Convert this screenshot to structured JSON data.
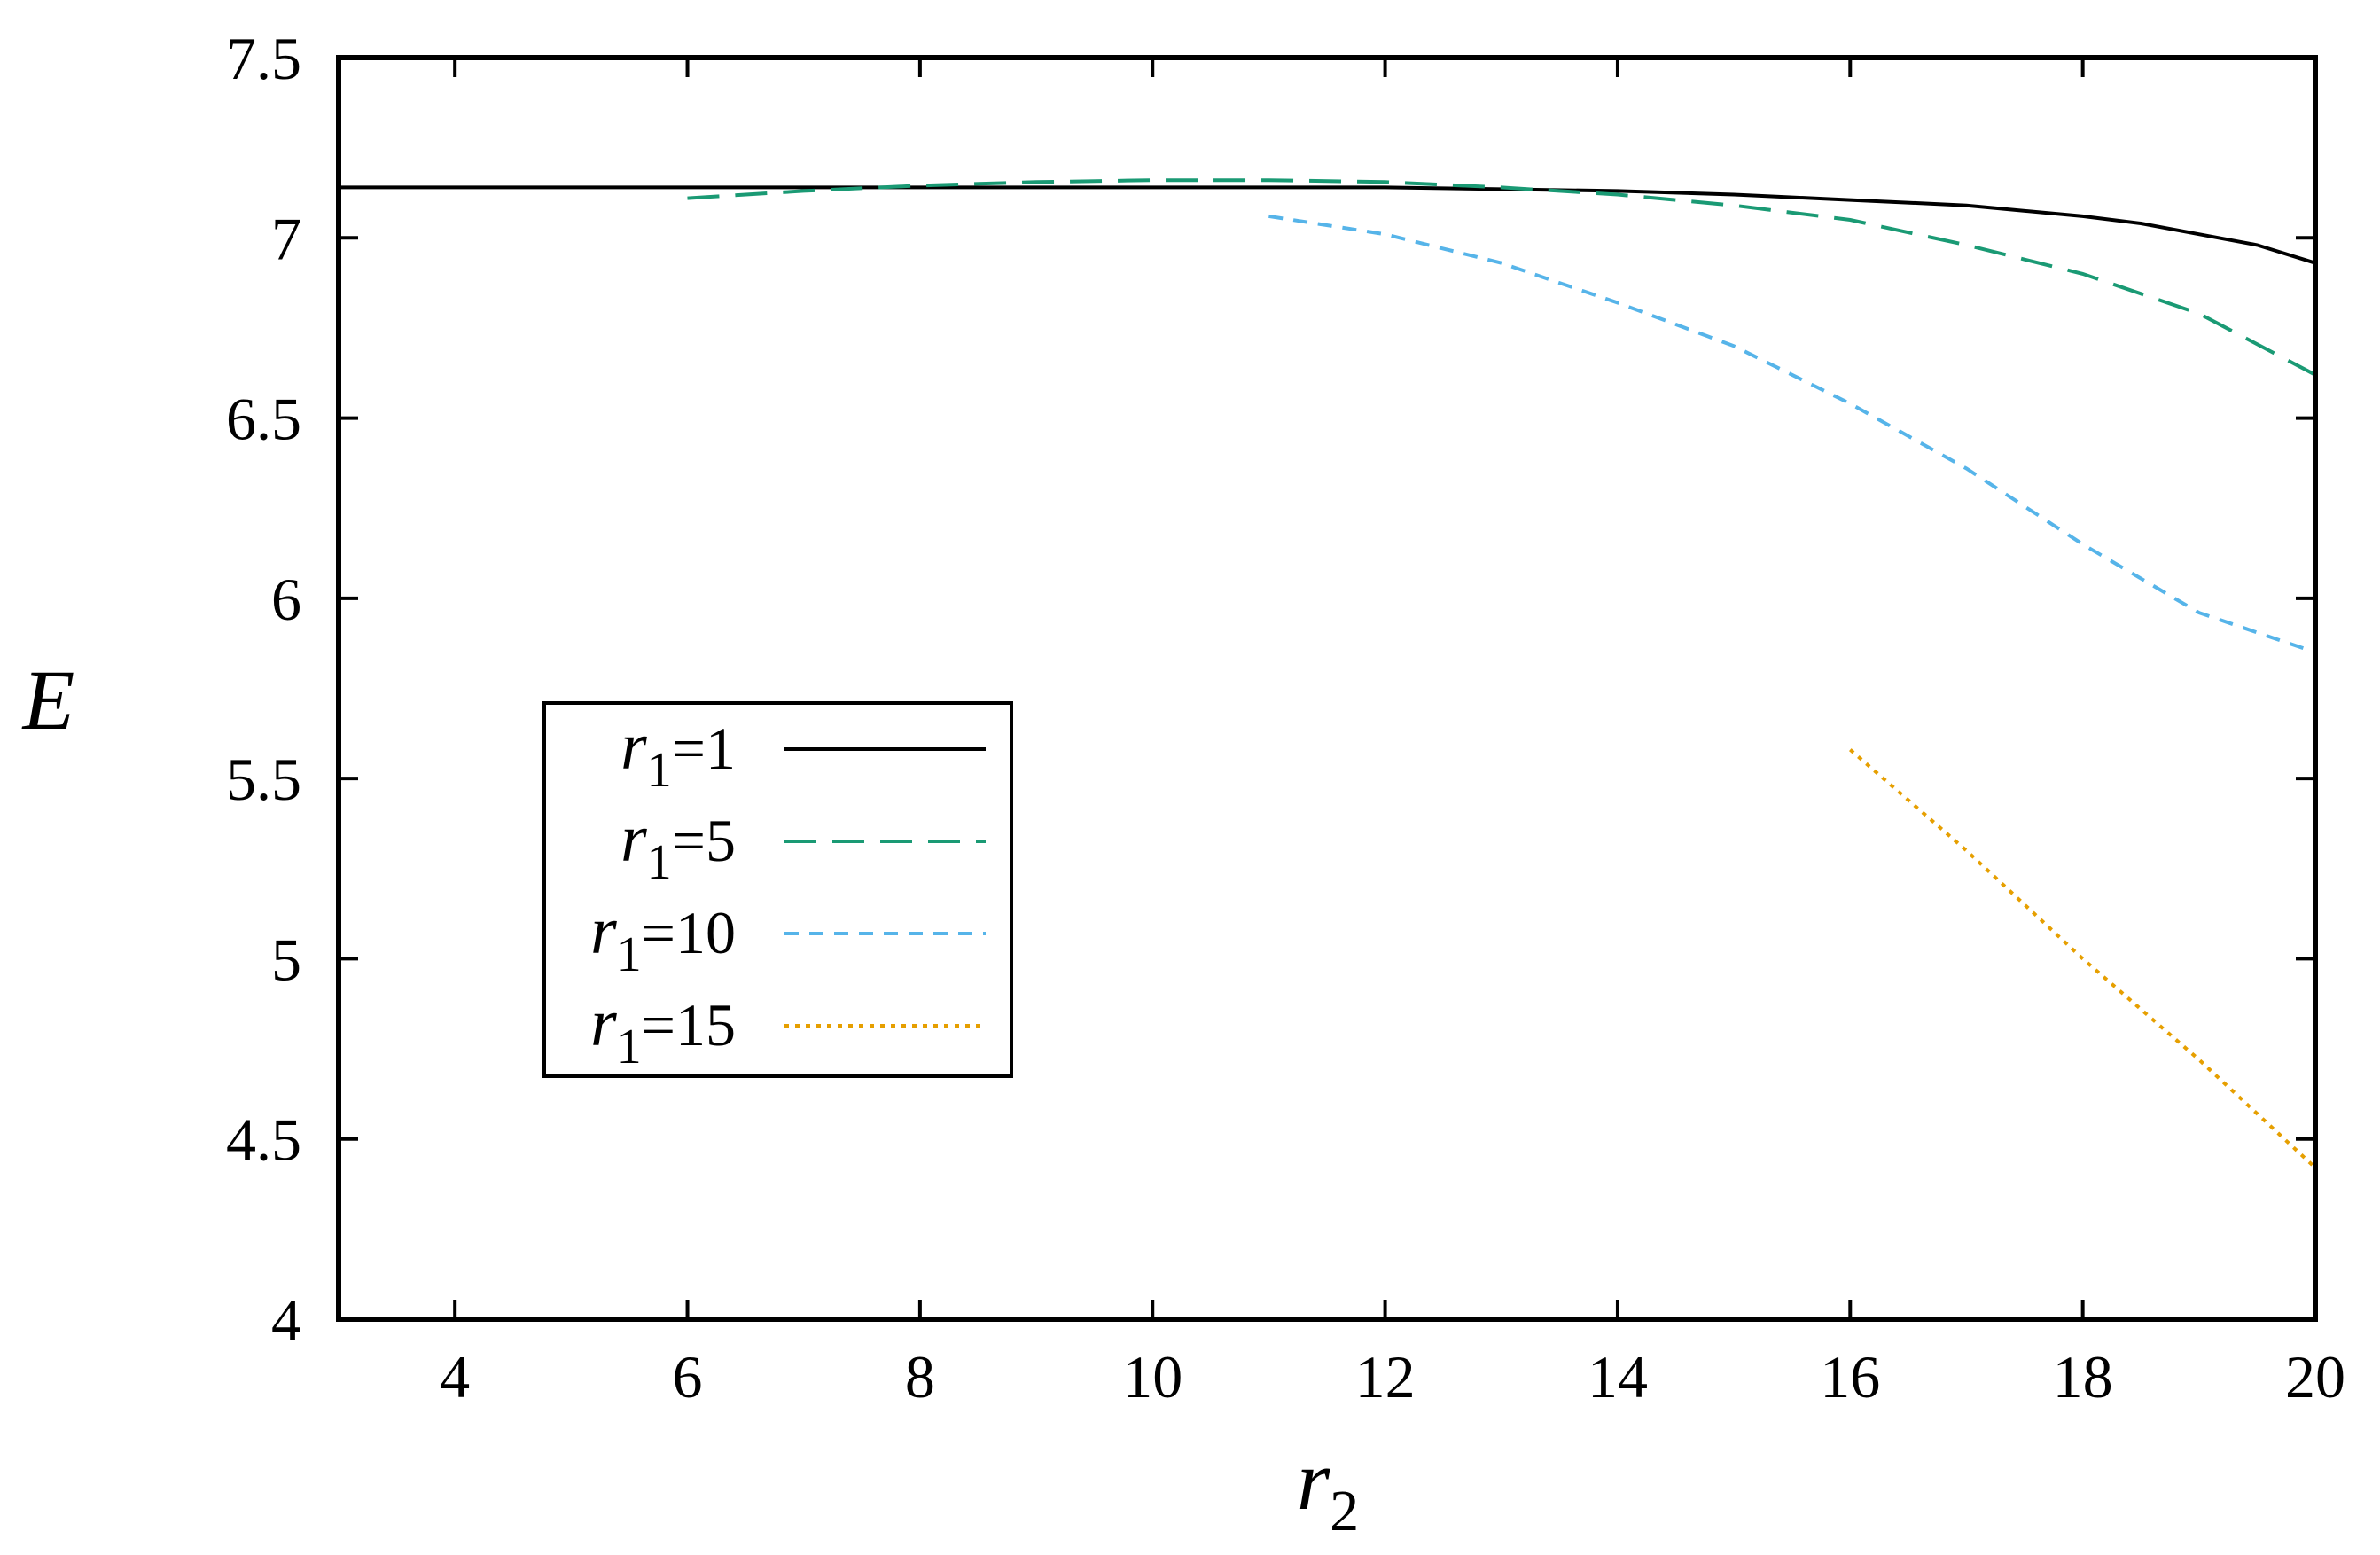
{
  "chart_data": {
    "type": "line",
    "title": "",
    "xlabel": {
      "main": "r",
      "sub": "2"
    },
    "ylabel": "E",
    "xlim": [
      3,
      20
    ],
    "ylim": [
      4,
      7.5
    ],
    "xticks": [
      4,
      6,
      8,
      10,
      12,
      14,
      16,
      18,
      20
    ],
    "yticks": [
      4,
      4.5,
      5,
      5.5,
      6,
      6.5,
      7,
      7.5
    ],
    "xtick_labels": [
      "4",
      "6",
      "8",
      "10",
      "12",
      "14",
      "16",
      "18",
      "20"
    ],
    "ytick_labels": [
      "4",
      "4.5",
      "5",
      "5.5",
      "6",
      "6.5",
      "7",
      "7.5"
    ],
    "grid": false,
    "legend_position": "middle-left",
    "series": [
      {
        "name": "r1=1",
        "label_main": "r",
        "label_sub": "1",
        "label_rest": "=1",
        "color": "#000000",
        "style": "solid",
        "x": [
          3,
          4,
          5,
          6,
          7,
          8,
          9,
          10,
          11,
          12,
          13,
          14,
          15,
          16,
          17,
          18,
          18.5,
          19,
          19.5,
          20
        ],
        "y": [
          7.14,
          7.14,
          7.14,
          7.14,
          7.14,
          7.14,
          7.14,
          7.14,
          7.14,
          7.14,
          7.135,
          7.13,
          7.12,
          7.105,
          7.09,
          7.06,
          7.04,
          7.01,
          6.98,
          6.93
        ]
      },
      {
        "name": "r1=5",
        "label_main": "r",
        "label_sub": "1",
        "label_rest": "=5",
        "color": "#1a9a74",
        "style": "long-dash",
        "x": [
          6,
          7,
          8,
          9,
          10,
          11,
          12,
          13,
          14,
          15,
          16,
          17,
          18,
          19,
          20
        ],
        "y": [
          7.11,
          7.13,
          7.145,
          7.155,
          7.16,
          7.16,
          7.155,
          7.14,
          7.12,
          7.09,
          7.05,
          6.98,
          6.9,
          6.79,
          6.62
        ]
      },
      {
        "name": "r1=10",
        "label_main": "r",
        "label_sub": "1",
        "label_rest": "=10",
        "color": "#56b4e9",
        "style": "short-dash",
        "x": [
          11,
          12,
          13,
          14,
          15,
          16,
          17,
          18,
          19,
          20
        ],
        "y": [
          7.06,
          7.01,
          6.93,
          6.82,
          6.7,
          6.54,
          6.36,
          6.15,
          5.96,
          5.85
        ]
      },
      {
        "name": "r1=15",
        "label_main": "r",
        "label_sub": "1",
        "label_rest": "=15",
        "color": "#e69f00",
        "style": "dotted",
        "x": [
          16,
          17,
          18,
          19,
          20
        ],
        "y": [
          5.58,
          5.3,
          5.0,
          4.72,
          4.42
        ]
      }
    ]
  }
}
